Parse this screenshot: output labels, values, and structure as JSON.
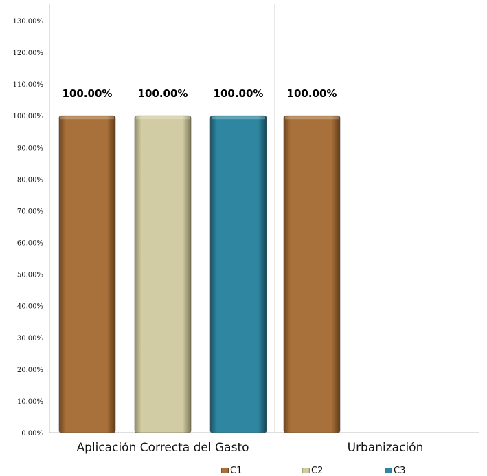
{
  "chart_data": {
    "type": "bar",
    "categories": [
      "Aplicación Correcta del Gasto",
      "Urbanización"
    ],
    "series": [
      {
        "name": "C1",
        "values": [
          100,
          100
        ],
        "color": "#a8703a"
      },
      {
        "name": "C2",
        "values": [
          100,
          null
        ],
        "color": "#d1cca3"
      },
      {
        "name": "C3",
        "values": [
          100,
          null
        ],
        "color": "#2e86a0"
      }
    ],
    "data_labels": [
      [
        "100.00%",
        "100.00%"
      ],
      [
        "100.00%",
        null
      ],
      [
        "100.00%",
        null
      ]
    ],
    "ylim": [
      0,
      130
    ],
    "yticks": [
      "0.00%",
      "10.00%",
      "20.00%",
      "30.00%",
      "40.00%",
      "50.00%",
      "60.00%",
      "70.00%",
      "80.00%",
      "90.00%",
      "100.00%",
      "110.00%",
      "120.00%",
      "130.00%"
    ],
    "title": "",
    "xlabel": "",
    "ylabel": "",
    "grid": false,
    "legend_position": "bottom"
  }
}
